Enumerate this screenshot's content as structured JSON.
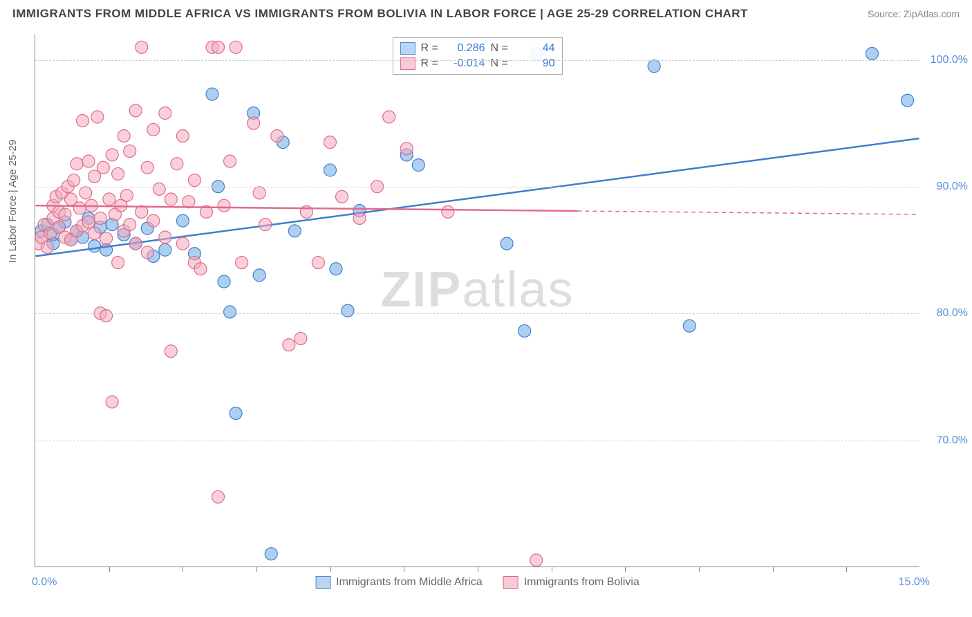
{
  "title": "IMMIGRANTS FROM MIDDLE AFRICA VS IMMIGRANTS FROM BOLIVIA IN LABOR FORCE | AGE 25-29 CORRELATION CHART",
  "source": "Source: ZipAtlas.com",
  "y_label": "In Labor Force | Age 25-29",
  "watermark_a": "ZIP",
  "watermark_b": "atlas",
  "chart": {
    "type": "scatter",
    "xlim": [
      0,
      15
    ],
    "ylim": [
      60,
      102
    ],
    "x_ticks": [
      0,
      15
    ],
    "x_tick_labels": [
      "0.0%",
      "15.0%"
    ],
    "y_ticks": [
      70,
      80,
      90,
      100
    ],
    "y_tick_labels": [
      "70.0%",
      "80.0%",
      "90.0%",
      "100.0%"
    ],
    "x_minor_ticks": [
      1.25,
      2.5,
      3.75,
      5,
      6.25,
      7.5,
      8.75,
      10,
      11.25,
      12.5,
      13.75
    ],
    "background_color": "#ffffff",
    "grid_color": "#cccccc",
    "point_radius": 9,
    "point_opacity": 0.55,
    "series": [
      {
        "name": "Immigrants from Middle Africa",
        "label": "Immigrants from Middle Africa",
        "color": "#6ea8e8",
        "stroke": "#3f7fc9",
        "r_value": "0.286",
        "n_value": "44",
        "trend": {
          "x1": 0,
          "y1": 84.5,
          "x2": 15,
          "y2": 93.8,
          "solid_until_x": 15
        },
        "points": [
          [
            0.1,
            86.5
          ],
          [
            0.2,
            87.0
          ],
          [
            0.3,
            86.2
          ],
          [
            0.3,
            85.5
          ],
          [
            0.4,
            86.8
          ],
          [
            0.5,
            87.2
          ],
          [
            0.6,
            85.8
          ],
          [
            0.7,
            86.5
          ],
          [
            0.8,
            86.0
          ],
          [
            0.9,
            87.5
          ],
          [
            1.0,
            85.3
          ],
          [
            1.1,
            86.8
          ],
          [
            1.2,
            85.0
          ],
          [
            1.3,
            87.0
          ],
          [
            1.5,
            86.2
          ],
          [
            1.7,
            85.5
          ],
          [
            1.9,
            86.7
          ],
          [
            2.0,
            84.5
          ],
          [
            2.2,
            85.0
          ],
          [
            2.5,
            87.3
          ],
          [
            2.7,
            84.7
          ],
          [
            3.0,
            97.3
          ],
          [
            3.1,
            90.0
          ],
          [
            3.2,
            82.5
          ],
          [
            3.3,
            80.1
          ],
          [
            3.4,
            72.1
          ],
          [
            3.7,
            95.8
          ],
          [
            3.8,
            83.0
          ],
          [
            4.0,
            61.0
          ],
          [
            4.2,
            93.5
          ],
          [
            4.4,
            86.5
          ],
          [
            5.0,
            91.3
          ],
          [
            5.1,
            83.5
          ],
          [
            5.3,
            80.2
          ],
          [
            5.5,
            88.1
          ],
          [
            6.3,
            92.5
          ],
          [
            6.5,
            91.7
          ],
          [
            8.0,
            85.5
          ],
          [
            8.3,
            78.6
          ],
          [
            8.5,
            100.5
          ],
          [
            10.5,
            99.5
          ],
          [
            11.1,
            79.0
          ],
          [
            14.2,
            100.5
          ],
          [
            14.8,
            96.8
          ]
        ]
      },
      {
        "name": "Immigrants from Bolivia",
        "label": "Immigrants from Bolivia",
        "color": "#f4aabb",
        "stroke": "#e06a8a",
        "r_value": "-0.014",
        "n_value": "90",
        "trend": {
          "x1": 0,
          "y1": 88.5,
          "x2": 15,
          "y2": 87.8,
          "solid_until_x": 9.2
        },
        "points": [
          [
            0.05,
            85.5
          ],
          [
            0.1,
            86.0
          ],
          [
            0.15,
            87.0
          ],
          [
            0.2,
            85.2
          ],
          [
            0.25,
            86.3
          ],
          [
            0.3,
            87.5
          ],
          [
            0.3,
            88.5
          ],
          [
            0.35,
            89.2
          ],
          [
            0.4,
            86.8
          ],
          [
            0.4,
            88.0
          ],
          [
            0.45,
            89.5
          ],
          [
            0.5,
            86.0
          ],
          [
            0.5,
            87.8
          ],
          [
            0.55,
            90.0
          ],
          [
            0.6,
            85.8
          ],
          [
            0.6,
            89.0
          ],
          [
            0.65,
            90.5
          ],
          [
            0.7,
            86.5
          ],
          [
            0.7,
            91.8
          ],
          [
            0.75,
            88.3
          ],
          [
            0.8,
            86.9
          ],
          [
            0.8,
            95.2
          ],
          [
            0.85,
            89.5
          ],
          [
            0.9,
            87.2
          ],
          [
            0.9,
            92.0
          ],
          [
            0.95,
            88.5
          ],
          [
            1.0,
            86.3
          ],
          [
            1.0,
            90.8
          ],
          [
            1.05,
            95.5
          ],
          [
            1.1,
            80.0
          ],
          [
            1.1,
            87.5
          ],
          [
            1.15,
            91.5
          ],
          [
            1.2,
            85.9
          ],
          [
            1.2,
            79.8
          ],
          [
            1.25,
            89.0
          ],
          [
            1.3,
            92.5
          ],
          [
            1.3,
            73.0
          ],
          [
            1.35,
            87.8
          ],
          [
            1.4,
            91.0
          ],
          [
            1.4,
            84.0
          ],
          [
            1.45,
            88.5
          ],
          [
            1.5,
            86.5
          ],
          [
            1.5,
            94.0
          ],
          [
            1.55,
            89.3
          ],
          [
            1.6,
            87.0
          ],
          [
            1.6,
            92.8
          ],
          [
            1.7,
            85.5
          ],
          [
            1.7,
            96.0
          ],
          [
            1.8,
            88.0
          ],
          [
            1.8,
            101.0
          ],
          [
            1.9,
            84.8
          ],
          [
            1.9,
            91.5
          ],
          [
            2.0,
            87.3
          ],
          [
            2.0,
            94.5
          ],
          [
            2.1,
            89.8
          ],
          [
            2.2,
            86.0
          ],
          [
            2.2,
            95.8
          ],
          [
            2.3,
            89.0
          ],
          [
            2.3,
            77.0
          ],
          [
            2.4,
            91.8
          ],
          [
            2.5,
            85.5
          ],
          [
            2.5,
            94.0
          ],
          [
            2.6,
            88.8
          ],
          [
            2.7,
            84.0
          ],
          [
            2.7,
            90.5
          ],
          [
            2.8,
            83.5
          ],
          [
            2.9,
            88.0
          ],
          [
            3.0,
            101.0
          ],
          [
            3.1,
            101.0
          ],
          [
            3.1,
            65.5
          ],
          [
            3.2,
            88.5
          ],
          [
            3.3,
            92.0
          ],
          [
            3.4,
            101.0
          ],
          [
            3.5,
            84.0
          ],
          [
            3.7,
            95.0
          ],
          [
            3.8,
            89.5
          ],
          [
            3.9,
            87.0
          ],
          [
            4.1,
            94.0
          ],
          [
            4.3,
            77.5
          ],
          [
            4.5,
            78.0
          ],
          [
            4.6,
            88.0
          ],
          [
            4.8,
            84.0
          ],
          [
            5.0,
            93.5
          ],
          [
            5.2,
            89.2
          ],
          [
            5.5,
            87.5
          ],
          [
            5.8,
            90.0
          ],
          [
            6.0,
            95.5
          ],
          [
            6.3,
            93.0
          ],
          [
            7.0,
            88.0
          ],
          [
            8.5,
            60.5
          ]
        ]
      }
    ]
  },
  "legend_labels": {
    "R": "R =",
    "N": "N ="
  }
}
